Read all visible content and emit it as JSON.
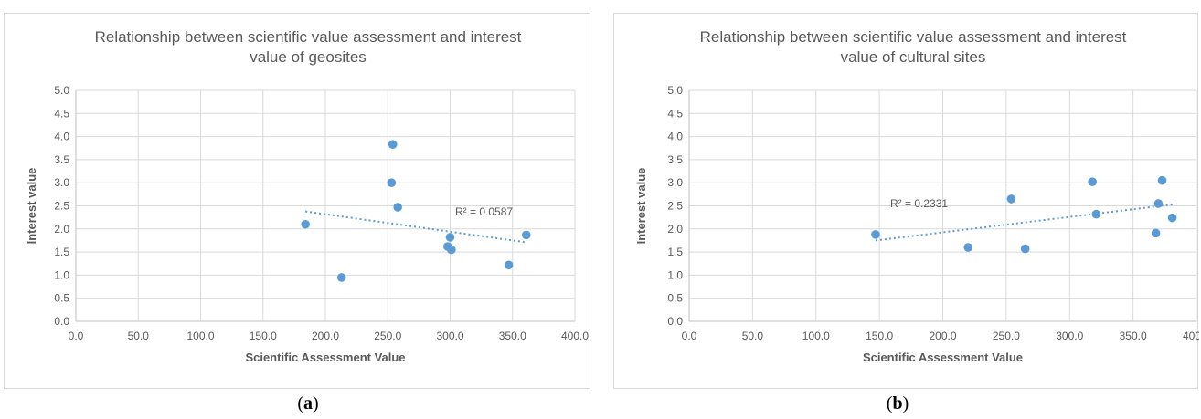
{
  "chart_data": [
    {
      "type": "scatter",
      "title": "Relationship between scientific value assessment and interest value of geosites",
      "title_lines": [
        "Relationship between scientific value assessment and interest",
        "value of geosites"
      ],
      "xlabel": "Scientific Assessment Value",
      "ylabel": "Interest value",
      "xlim": [
        0,
        400
      ],
      "ylim": [
        0,
        5
      ],
      "x_ticks": [
        "0.0",
        "50.0",
        "100.0",
        "150.0",
        "200.0",
        "250.0",
        "300.0",
        "350.0",
        "400.0"
      ],
      "y_ticks": [
        "0.0",
        "0.5",
        "1.0",
        "1.5",
        "2.0",
        "2.5",
        "3.0",
        "3.5",
        "4.0",
        "4.5",
        "5.0"
      ],
      "grid": true,
      "marker_color": "#5b9bd5",
      "points": [
        {
          "x": 184,
          "y": 2.1
        },
        {
          "x": 213,
          "y": 0.95
        },
        {
          "x": 253,
          "y": 3.0
        },
        {
          "x": 254,
          "y": 3.83
        },
        {
          "x": 258,
          "y": 2.47
        },
        {
          "x": 298,
          "y": 1.62
        },
        {
          "x": 300,
          "y": 1.82
        },
        {
          "x": 301,
          "y": 1.55
        },
        {
          "x": 347,
          "y": 1.22
        },
        {
          "x": 361,
          "y": 1.87
        }
      ],
      "trendline": {
        "style": "dotted",
        "x": [
          184,
          361
        ],
        "y": [
          2.38,
          1.71
        ],
        "annotation": "R² = 0.0587"
      }
    },
    {
      "type": "scatter",
      "title": "Relationship between scientific value assessment and interest value of cultural sites",
      "title_lines": [
        "Relationship between scientific value assessment and interest",
        "value of cultural sites"
      ],
      "xlabel": "Scientific Assessment Value",
      "ylabel": "Interest value",
      "xlim": [
        0,
        400
      ],
      "ylim": [
        0,
        5
      ],
      "x_ticks": [
        "0.0",
        "50.0",
        "100.0",
        "150.0",
        "200.0",
        "250.0",
        "300.0",
        "350.0",
        "400.0"
      ],
      "y_ticks": [
        "0.0",
        "0.5",
        "1.0",
        "1.5",
        "2.0",
        "2.5",
        "3.0",
        "3.5",
        "4.0",
        "4.5",
        "5.0"
      ],
      "grid": true,
      "marker_color": "#5b9bd5",
      "points": [
        {
          "x": 147,
          "y": 1.88
        },
        {
          "x": 220,
          "y": 1.6
        },
        {
          "x": 254,
          "y": 2.65
        },
        {
          "x": 265,
          "y": 1.57
        },
        {
          "x": 318,
          "y": 3.02
        },
        {
          "x": 321,
          "y": 2.32
        },
        {
          "x": 368,
          "y": 1.91
        },
        {
          "x": 370,
          "y": 2.55
        },
        {
          "x": 373,
          "y": 3.05
        },
        {
          "x": 381,
          "y": 2.24
        }
      ],
      "trendline": {
        "style": "dotted",
        "x": [
          147,
          381
        ],
        "y": [
          1.75,
          2.53
        ],
        "annotation": "R² = 0.2331"
      }
    }
  ],
  "captions": {
    "a": {
      "open": "(",
      "letter": "a",
      "close": ")"
    },
    "b": {
      "open": "(",
      "letter": "b",
      "close": ")"
    }
  }
}
